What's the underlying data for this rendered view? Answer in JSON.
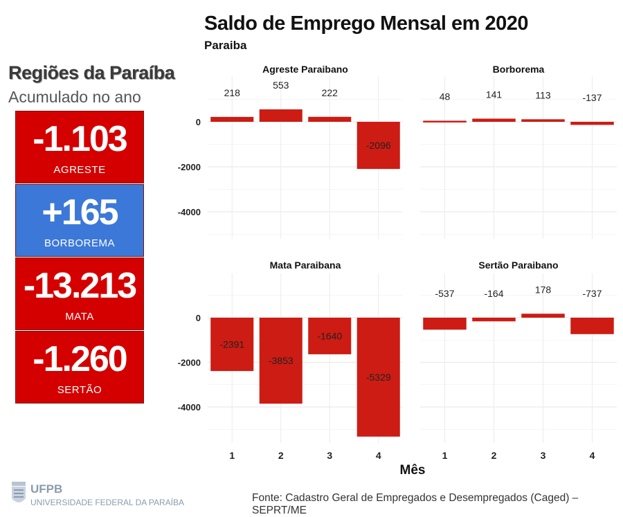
{
  "header": {
    "title": "Saldo de Emprego Mensal em 2020",
    "subtitle": "Paraiba"
  },
  "summary": {
    "title": "Regiões da Paraíba",
    "subtitle": "Acumulado no ano",
    "tiles": [
      {
        "value": "-1.103",
        "region": "AGRESTE",
        "color": "#d40000"
      },
      {
        "value": "+165",
        "region": "BORBOREMA",
        "color": "#3c78d8"
      },
      {
        "value": "-13.213",
        "region": "MATA",
        "color": "#d40000"
      },
      {
        "value": "-1.260",
        "region": "SERTÃO",
        "color": "#d40000"
      }
    ]
  },
  "chart_data": {
    "type": "bar",
    "x": [
      1,
      2,
      3,
      4
    ],
    "xlabel": "Mês",
    "ylabel": "",
    "y_ticks": [
      0,
      -2000,
      -4000
    ],
    "bar_color": "#cc1c14",
    "grid": true,
    "panels": [
      {
        "name": "Agreste Paraibano",
        "values": [
          218,
          553,
          222,
          -2096
        ],
        "ylim": [
          -4600,
          1100
        ]
      },
      {
        "name": "Borborema",
        "values": [
          48,
          141,
          113,
          -137
        ],
        "ylim": [
          -4600,
          1100
        ]
      },
      {
        "name": "Mata Paraibana",
        "values": [
          -2391,
          -3853,
          -1640,
          -5329
        ],
        "ylim": [
          -5600,
          1100
        ]
      },
      {
        "name": "Sertão Paraibano",
        "values": [
          -537,
          -164,
          178,
          -737
        ],
        "ylim": [
          -5600,
          1100
        ]
      }
    ]
  },
  "footer": {
    "org_short": "UFPB",
    "org_full": "UNIVERSIDADE FEDERAL DA PARAÍBA",
    "source": "Fonte: Cadastro Geral de Empregados e Desempregados (Caged) – SEPRT/ME"
  }
}
